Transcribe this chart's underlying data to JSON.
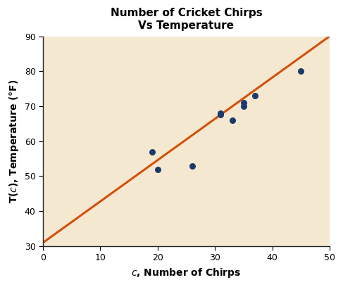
{
  "title": "Number of Cricket Chirps\nVs Temperature",
  "xlabel": "c, Number of Chirps",
  "ylabel": "T(c), Temperature (°F)",
  "xlim": [
    0,
    50
  ],
  "ylim": [
    30,
    90
  ],
  "xticks": [
    0,
    10,
    20,
    30,
    40,
    50
  ],
  "yticks": [
    30,
    40,
    50,
    60,
    70,
    80,
    90
  ],
  "scatter_x": [
    19,
    20,
    26,
    31,
    31,
    33,
    35,
    35,
    37,
    45
  ],
  "scatter_y": [
    57,
    52,
    53,
    67.5,
    68,
    66,
    71,
    70,
    73,
    80
  ],
  "scatter_color": "#1a3a6b",
  "scatter_size": 30,
  "line_x": [
    0,
    50
  ],
  "line_y": [
    31,
    90
  ],
  "line_color": "#d4500a",
  "line_width": 2.2,
  "bg_color": "#f5e8d0",
  "fig_bg_color": "#ffffff",
  "title_fontsize": 11,
  "label_fontsize": 10,
  "tick_fontsize": 9,
  "title_fontweight": "bold",
  "label_fontweight": "bold"
}
